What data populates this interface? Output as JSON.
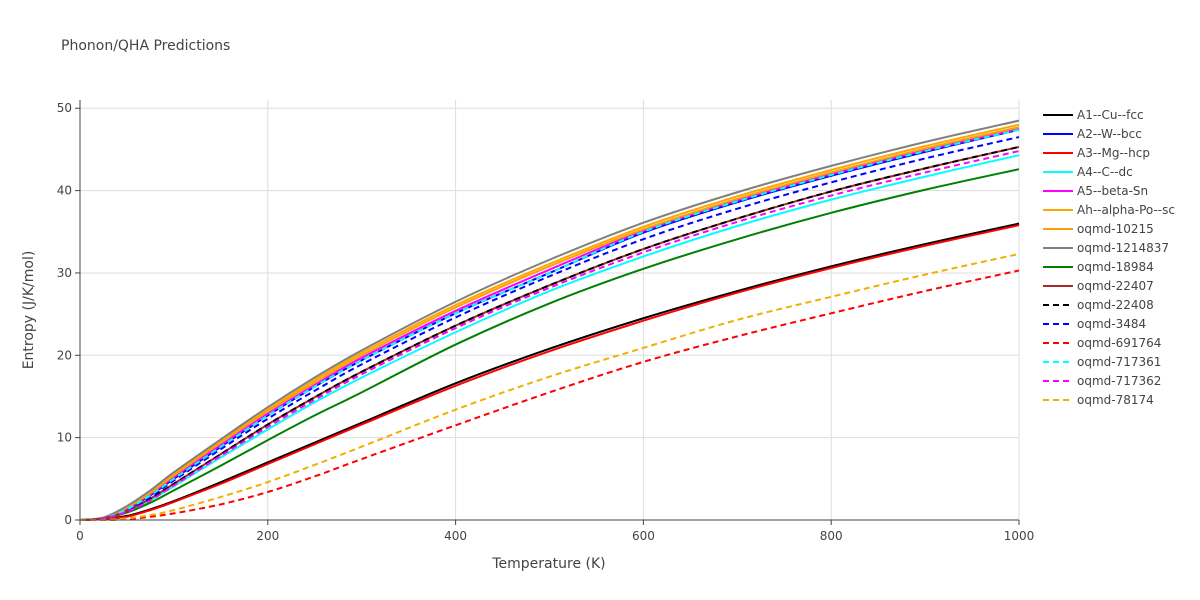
{
  "chart_data": {
    "type": "line",
    "title": "Phonon/QHA Predictions",
    "xlabel": "Temperature (K)",
    "ylabel": "Entropy (J/K/mol)",
    "xlim": [
      0,
      1000
    ],
    "ylim": [
      0,
      51
    ],
    "xticks": [
      0,
      200,
      400,
      600,
      800,
      1000
    ],
    "yticks": [
      0,
      10,
      20,
      30,
      40,
      50
    ],
    "grid": true,
    "legend_position": "right",
    "x": [
      0,
      25,
      50,
      75,
      100,
      150,
      200,
      250,
      300,
      400,
      500,
      600,
      700,
      800,
      900,
      1000
    ],
    "series": [
      {
        "name": "A1--Cu--fcc",
        "color": "#000000",
        "dash": "solid",
        "values": [
          0,
          0.1,
          0.5,
          1.3,
          2.3,
          4.6,
          7.0,
          9.4,
          11.8,
          16.6,
          20.8,
          24.5,
          27.8,
          30.8,
          33.5,
          36.0
        ]
      },
      {
        "name": "A2--W--bcc",
        "color": "#0000ff",
        "dash": "solid",
        "values": [
          0,
          0.2,
          1.3,
          3.0,
          5.0,
          8.9,
          12.7,
          16.2,
          19.4,
          25.1,
          30.0,
          34.9,
          38.6,
          41.8,
          44.7,
          47.4
        ]
      },
      {
        "name": "A3--Mg--hcp",
        "color": "#ff0000",
        "dash": "solid",
        "values": [
          0,
          0.1,
          0.4,
          1.2,
          2.2,
          4.4,
          6.8,
          9.2,
          11.6,
          16.3,
          20.5,
          24.2,
          27.6,
          30.6,
          33.3,
          35.8
        ]
      },
      {
        "name": "A4--C--dc",
        "color": "#00ffff",
        "dash": "solid",
        "values": [
          0,
          0.2,
          1.0,
          2.4,
          4.1,
          7.6,
          11.0,
          14.3,
          17.3,
          22.8,
          27.8,
          32.0,
          35.7,
          38.9,
          41.7,
          44.3
        ]
      },
      {
        "name": "A5--beta-Sn",
        "color": "#ff00ff",
        "dash": "solid",
        "values": [
          0,
          0.2,
          1.4,
          3.1,
          5.2,
          9.1,
          12.9,
          16.4,
          19.7,
          25.4,
          30.4,
          35.1,
          38.8,
          42.0,
          44.9,
          47.5
        ]
      },
      {
        "name": "Ah--alpha-Po--sc",
        "color": "#ffa500",
        "dash": "solid",
        "values": [
          0,
          0.3,
          1.6,
          3.5,
          5.6,
          9.6,
          13.4,
          17.0,
          20.3,
          26.1,
          31.1,
          35.6,
          39.3,
          42.5,
          45.4,
          48.0
        ]
      },
      {
        "name": "oqmd-10215",
        "color": "#ff9f00",
        "dash": "solid",
        "values": [
          0,
          0.3,
          1.5,
          3.3,
          5.4,
          9.4,
          13.2,
          16.7,
          20.0,
          25.8,
          30.8,
          35.3,
          39.0,
          42.2,
          45.1,
          47.7
        ]
      },
      {
        "name": "oqmd-1214837",
        "color": "#808080",
        "dash": "solid",
        "values": [
          0,
          0.3,
          1.7,
          3.6,
          5.8,
          9.8,
          13.7,
          17.3,
          20.6,
          26.5,
          31.6,
          36.1,
          39.8,
          43.0,
          45.9,
          48.5
        ]
      },
      {
        "name": "oqmd-18984",
        "color": "#008000",
        "dash": "solid",
        "values": [
          0,
          0.2,
          0.9,
          2.1,
          3.6,
          6.6,
          9.7,
          12.7,
          15.5,
          21.3,
          26.3,
          30.5,
          34.1,
          37.3,
          40.1,
          42.6
        ]
      },
      {
        "name": "oqmd-22407",
        "color": "#a52a2a",
        "dash": "solid",
        "values": [
          0,
          0.2,
          1.1,
          2.6,
          4.4,
          8.0,
          11.6,
          14.9,
          18.0,
          23.6,
          28.5,
          32.9,
          36.6,
          39.9,
          42.7,
          45.3
        ]
      },
      {
        "name": "oqmd-22408",
        "color": "#000000",
        "dash": "dash",
        "values": [
          0,
          0.2,
          1.1,
          2.6,
          4.4,
          8.0,
          11.6,
          14.9,
          18.0,
          23.6,
          28.5,
          32.9,
          36.6,
          39.9,
          42.7,
          45.3
        ]
      },
      {
        "name": "oqmd-3484",
        "color": "#0000ff",
        "dash": "dash",
        "values": [
          0,
          0.2,
          1.2,
          2.8,
          4.8,
          8.6,
          12.3,
          15.7,
          18.9,
          24.6,
          29.6,
          34.1,
          37.8,
          41.0,
          43.9,
          46.5
        ]
      },
      {
        "name": "oqmd-691764",
        "color": "#ff0000",
        "dash": "dash",
        "values": [
          0,
          0.0,
          0.1,
          0.4,
          0.8,
          1.9,
          3.4,
          5.3,
          7.4,
          11.5,
          15.5,
          19.2,
          22.3,
          25.1,
          27.8,
          30.3
        ]
      },
      {
        "name": "oqmd-717361",
        "color": "#00ffff",
        "dash": "dash",
        "values": [
          0,
          0.2,
          1.3,
          3.0,
          5.0,
          8.9,
          12.7,
          16.2,
          19.4,
          25.1,
          30.0,
          35.0,
          38.7,
          41.9,
          44.8,
          47.4
        ]
      },
      {
        "name": "oqmd-717362",
        "color": "#ff00ff",
        "dash": "dash",
        "values": [
          0,
          0.2,
          1.0,
          2.4,
          4.2,
          7.8,
          11.3,
          14.6,
          17.7,
          23.3,
          28.2,
          32.5,
          36.2,
          39.4,
          42.2,
          44.8
        ]
      },
      {
        "name": "oqmd-78174",
        "color": "#f0b000",
        "dash": "dash",
        "values": [
          0,
          0.0,
          0.2,
          0.6,
          1.2,
          2.8,
          4.6,
          6.7,
          8.9,
          13.4,
          17.4,
          20.9,
          24.3,
          27.1,
          29.8,
          32.3
        ]
      }
    ]
  }
}
